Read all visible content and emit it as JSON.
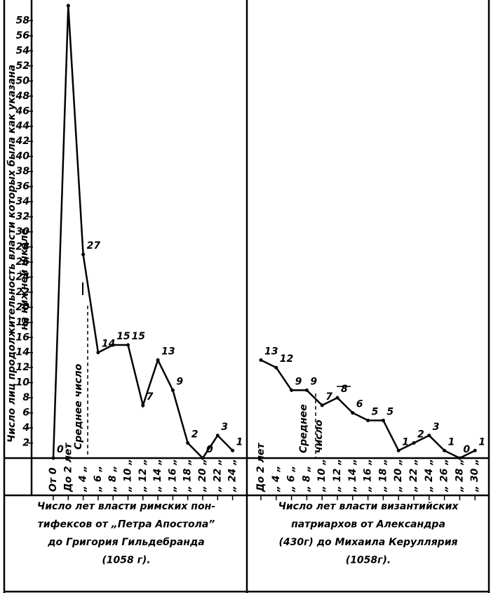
{
  "chart_data": {
    "type": "line",
    "ylabel": [
      "Число лиц продолжительность власти которых была как указана",
      "на нижней шкале"
    ],
    "ylim": [
      0,
      60
    ],
    "yticks": [
      2,
      4,
      6,
      8,
      10,
      12,
      14,
      16,
      18,
      20,
      22,
      24,
      26,
      28,
      30,
      32,
      34,
      36,
      38,
      40,
      42,
      44,
      46,
      48,
      50,
      52,
      54,
      56,
      58
    ],
    "color": "#000000",
    "panels": [
      {
        "categories": [
          "От 0",
          "До 2 лет",
          "„ 4 „",
          "„ 6 „",
          "„ 8 „",
          "„ 10 „",
          "„ 12 „",
          "„ 14 „",
          "„ 16 „",
          "„ 18 „",
          "„ 20 „",
          "„ 22 „",
          "„ 24 „"
        ],
        "values": [
          0,
          60,
          27,
          14,
          15,
          15,
          7,
          13,
          9,
          2,
          0,
          3,
          1
        ],
        "annotation": [
          "Среднее число"
        ],
        "caption": [
          "Число лет власти римских пон-",
          "тифексов от „Петра Апостола”",
          "до Григория Гильдебранда",
          "(1058 г)."
        ]
      },
      {
        "categories": [
          "До 2 лет",
          "„ 4 „",
          "„ 6 „",
          "„ 8 „",
          "„ 10 „",
          "„ 12 „",
          "„ 14 „",
          "„ 16 „",
          "„ 18 „",
          "„ 20 „",
          "„ 22 „",
          "„ 24 „",
          "„ 26 „",
          "„ 28 „",
          "„ 30 „"
        ],
        "values": [
          13,
          12,
          9,
          9,
          7,
          8,
          6,
          5,
          5,
          1,
          2,
          3,
          1,
          0,
          1
        ],
        "annotation": [
          "Среднее",
          "число"
        ],
        "caption": [
          "Число лет власти византийских",
          "патриархов от Александра",
          "(430г) до Михаила Керуллярия",
          "(1058г)."
        ]
      }
    ]
  }
}
